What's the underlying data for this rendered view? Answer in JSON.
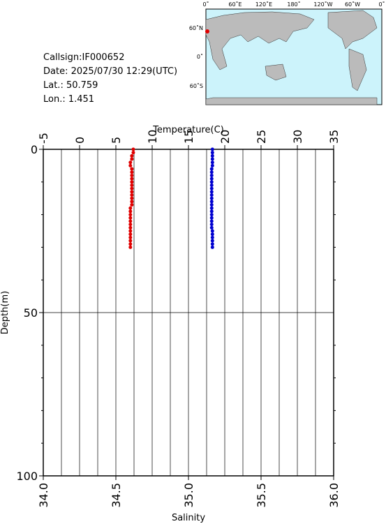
{
  "chart_data": {
    "type": "profile",
    "info": [
      "Callsign:IF000652",
      "Date:  2025/07/30 12:29(UTC)",
      "Lat.:   50.759",
      "Lon.:    1.451"
    ],
    "map": {
      "xlabels": [
        "0˚",
        "60˚E",
        "120˚E",
        "180˚",
        "120˚W",
        "60˚W",
        "0˚"
      ],
      "ylabels": [
        "60˚N",
        "0˚",
        "60˚S"
      ]
    },
    "x2label": "Temperature(C)",
    "xlabel": "Salinity",
    "ylabel": "Depth(m)",
    "x2lim": [
      -5,
      35
    ],
    "x2ticks": [
      -5,
      0,
      5,
      10,
      15,
      20,
      25,
      30,
      35
    ],
    "x2minor": [
      -2.5,
      2.5,
      7.5,
      12.5,
      17.5,
      22.5,
      27.5,
      32.5
    ],
    "xlim": [
      34.0,
      36.0
    ],
    "xticks": [
      {
        "value": 34.0,
        "label": "34.0"
      },
      {
        "value": 34.5,
        "label": "34.5"
      },
      {
        "value": 35.0,
        "label": "35.0"
      },
      {
        "value": 35.5,
        "label": "35.5"
      },
      {
        "value": 36.0,
        "label": "36.0"
      }
    ],
    "ylim": [
      0,
      100
    ],
    "yticks": [
      0,
      50,
      100
    ],
    "yminor": [
      10,
      20,
      30,
      40,
      60,
      70,
      80,
      90
    ],
    "depth": [
      0,
      1,
      2,
      3,
      4,
      5,
      6,
      7,
      8,
      9,
      10,
      11,
      12,
      13,
      14,
      15,
      16,
      17,
      18,
      19,
      20,
      21,
      22,
      23,
      24,
      25,
      26,
      27,
      28,
      29,
      30
    ],
    "series": [
      {
        "color": "#e00000",
        "axis": "x",
        "values": [
          34.62,
          34.62,
          34.61,
          34.61,
          34.6,
          34.6,
          34.61,
          34.61,
          34.61,
          34.61,
          34.61,
          34.61,
          34.61,
          34.61,
          34.61,
          34.61,
          34.61,
          34.61,
          34.6,
          34.6,
          34.6,
          34.6,
          34.6,
          34.6,
          34.6,
          34.6,
          34.6,
          34.6,
          34.6,
          34.6,
          34.6
        ]
      },
      {
        "color": "#0000d0",
        "axis": "x2",
        "values": [
          18.3,
          18.3,
          18.3,
          18.3,
          18.3,
          18.3,
          18.2,
          18.2,
          18.2,
          18.2,
          18.2,
          18.2,
          18.2,
          18.2,
          18.2,
          18.2,
          18.2,
          18.2,
          18.2,
          18.2,
          18.2,
          18.2,
          18.2,
          18.2,
          18.2,
          18.3,
          18.3,
          18.3,
          18.3,
          18.3,
          18.3
        ]
      }
    ]
  }
}
